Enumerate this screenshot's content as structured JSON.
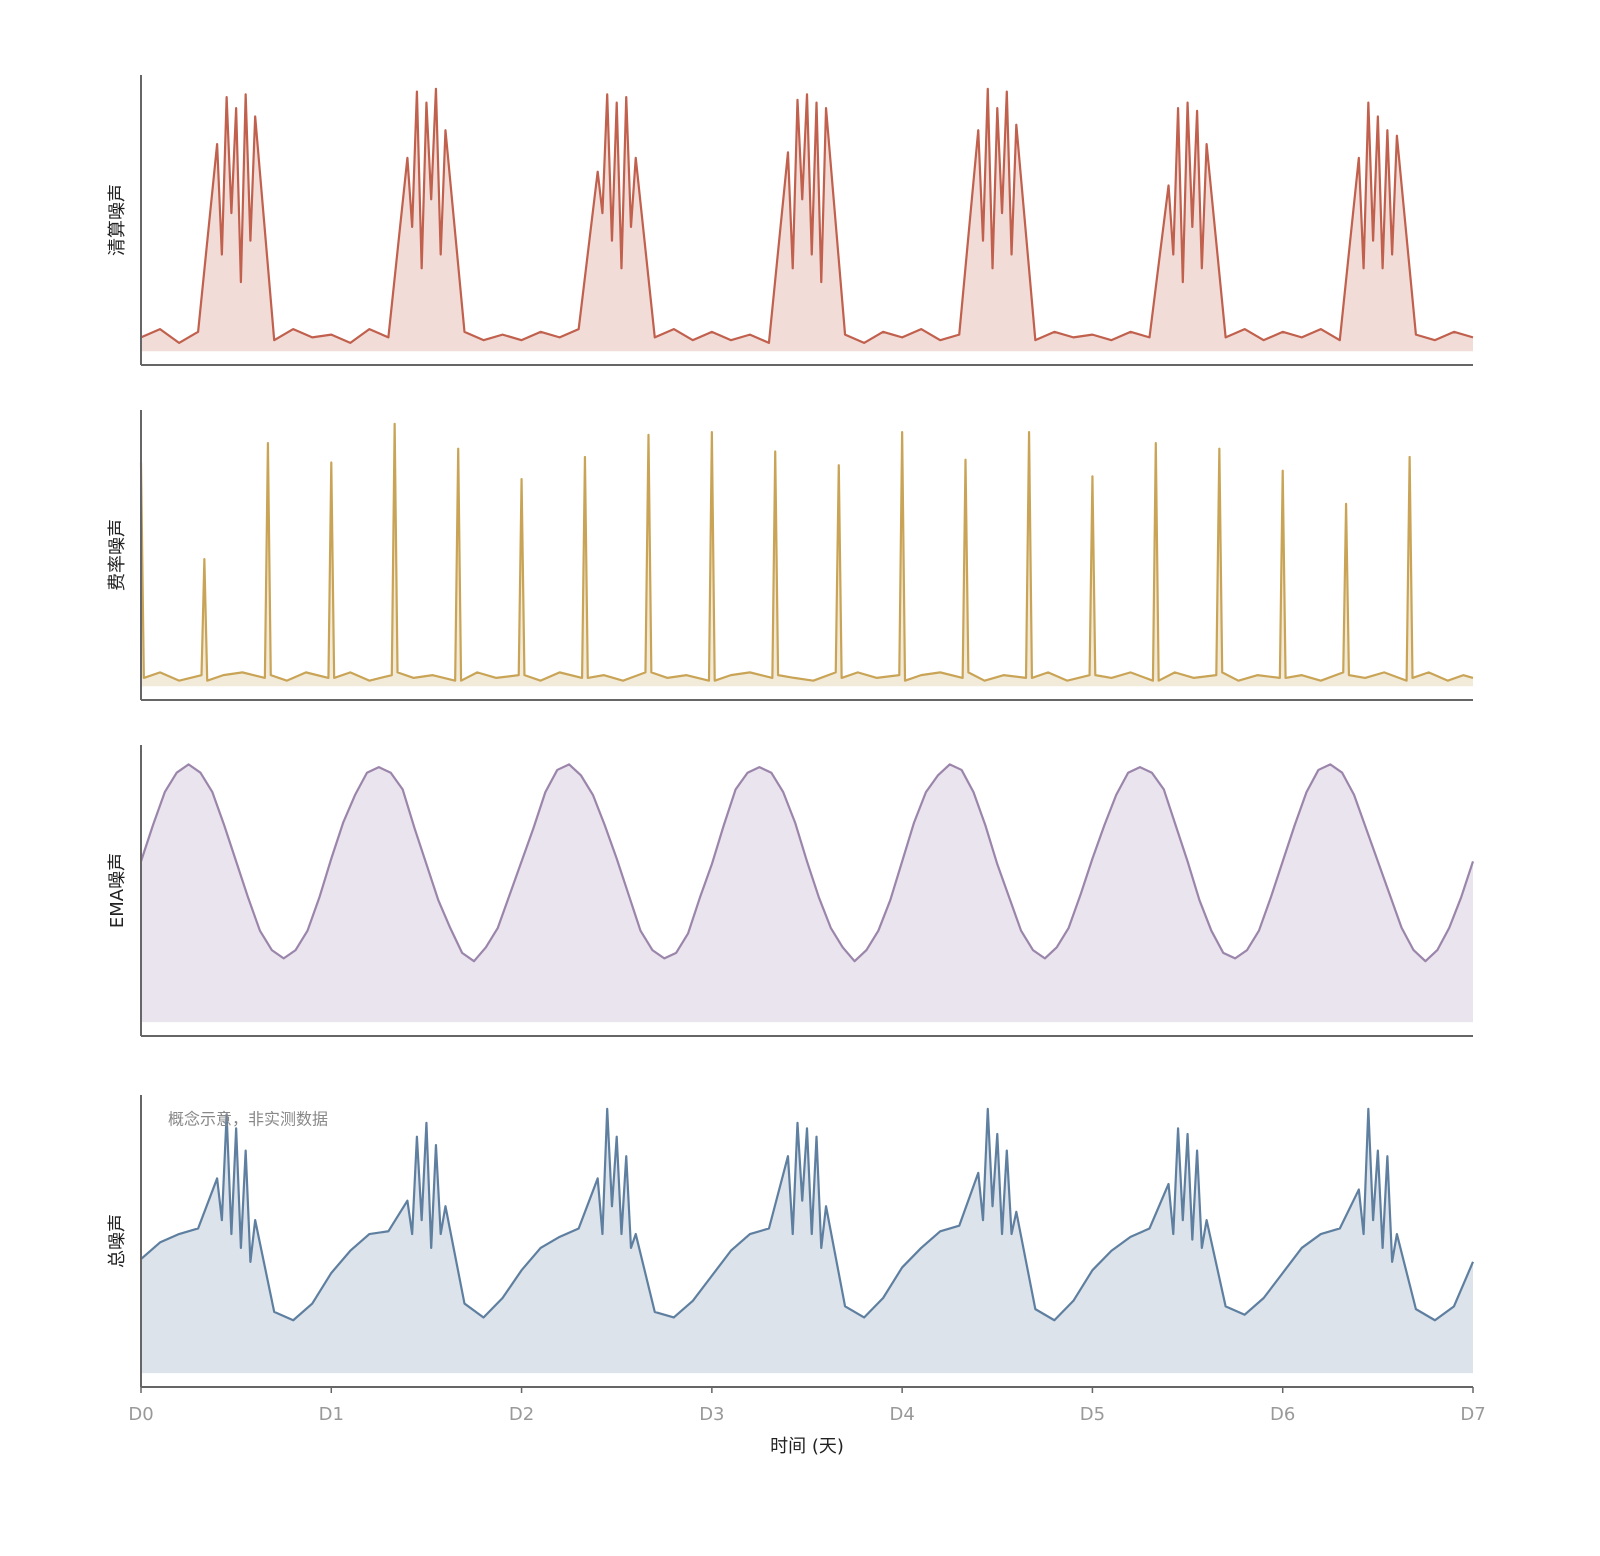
{
  "chart_data": [
    {
      "type": "area",
      "ylabel": "清算噪声",
      "color": "#c0604d",
      "xlim": [
        0,
        7
      ],
      "ylim": [
        -0.05,
        1.0
      ],
      "x": [
        0,
        0.1,
        0.2,
        0.3,
        0.4,
        0.425,
        0.45,
        0.475,
        0.5,
        0.525,
        0.55,
        0.575,
        0.6,
        0.7,
        0.8,
        0.9,
        1,
        1.1,
        1.2,
        1.3,
        1.4,
        1.425,
        1.45,
        1.475,
        1.5,
        1.525,
        1.55,
        1.575,
        1.6,
        1.7,
        1.8,
        1.9,
        2,
        2.1,
        2.2,
        2.3,
        2.4,
        2.425,
        2.45,
        2.475,
        2.5,
        2.525,
        2.55,
        2.575,
        2.6,
        2.7,
        2.8,
        2.9,
        3,
        3.1,
        3.2,
        3.3,
        3.4,
        3.425,
        3.45,
        3.475,
        3.5,
        3.525,
        3.55,
        3.575,
        3.6,
        3.7,
        3.8,
        3.9,
        4,
        4.1,
        4.2,
        4.3,
        4.4,
        4.425,
        4.45,
        4.475,
        4.5,
        4.525,
        4.55,
        4.575,
        4.6,
        4.7,
        4.8,
        4.9,
        5,
        5.1,
        5.2,
        5.3,
        5.4,
        5.425,
        5.45,
        5.475,
        5.5,
        5.525,
        5.55,
        5.575,
        5.6,
        5.7,
        5.8,
        5.9,
        6,
        6.1,
        6.2,
        6.3,
        6.4,
        6.425,
        6.45,
        6.475,
        6.5,
        6.525,
        6.55,
        6.575,
        6.6,
        6.7,
        6.8,
        6.9,
        7
      ],
      "values": [
        0.05,
        0.08,
        0.03,
        0.07,
        0.75,
        0.35,
        0.92,
        0.5,
        0.88,
        0.25,
        0.93,
        0.4,
        0.85,
        0.04,
        0.08,
        0.05,
        0.06,
        0.03,
        0.08,
        0.05,
        0.7,
        0.45,
        0.94,
        0.3,
        0.9,
        0.55,
        0.95,
        0.35,
        0.8,
        0.07,
        0.04,
        0.06,
        0.04,
        0.07,
        0.05,
        0.08,
        0.65,
        0.5,
        0.93,
        0.4,
        0.9,
        0.3,
        0.92,
        0.45,
        0.7,
        0.05,
        0.08,
        0.04,
        0.07,
        0.04,
        0.06,
        0.03,
        0.72,
        0.3,
        0.91,
        0.55,
        0.93,
        0.35,
        0.9,
        0.25,
        0.88,
        0.06,
        0.03,
        0.07,
        0.05,
        0.08,
        0.04,
        0.06,
        0.8,
        0.4,
        0.95,
        0.3,
        0.88,
        0.5,
        0.94,
        0.35,
        0.82,
        0.04,
        0.07,
        0.05,
        0.06,
        0.04,
        0.07,
        0.05,
        0.6,
        0.35,
        0.88,
        0.25,
        0.9,
        0.45,
        0.87,
        0.3,
        0.75,
        0.05,
        0.08,
        0.04,
        0.07,
        0.05,
        0.08,
        0.04,
        0.7,
        0.3,
        0.9,
        0.4,
        0.85,
        0.3,
        0.8,
        0.35,
        0.78,
        0.06,
        0.04,
        0.07,
        0.05
      ]
    },
    {
      "type": "area",
      "ylabel": "费率噪声",
      "color": "#c9a456",
      "xlim": [
        0,
        7
      ],
      "ylim": [
        -0.05,
        1.0
      ],
      "x": [
        0,
        0.015,
        0.1,
        0.2,
        0.318,
        0.333,
        0.348,
        0.433,
        0.533,
        0.651,
        0.667,
        0.682,
        0.767,
        0.867,
        0.985,
        1,
        1.015,
        1.1,
        1.2,
        1.318,
        1.333,
        1.348,
        1.433,
        1.533,
        1.651,
        1.667,
        1.682,
        1.767,
        1.867,
        1.985,
        2,
        2.015,
        2.1,
        2.2,
        2.318,
        2.333,
        2.348,
        2.433,
        2.533,
        2.651,
        2.667,
        2.682,
        2.767,
        2.867,
        2.985,
        3,
        3.015,
        3.1,
        3.2,
        3.318,
        3.333,
        3.348,
        3.433,
        3.533,
        3.651,
        3.667,
        3.682,
        3.767,
        3.867,
        3.985,
        4,
        4.015,
        4.1,
        4.2,
        4.318,
        4.333,
        4.348,
        4.433,
        4.533,
        4.651,
        4.667,
        4.682,
        4.767,
        4.867,
        4.985,
        5,
        5.015,
        5.1,
        5.2,
        5.318,
        5.333,
        5.348,
        5.433,
        5.533,
        5.651,
        5.667,
        5.682,
        5.767,
        5.867,
        5.985,
        6,
        6.015,
        6.1,
        6.2,
        6.318,
        6.333,
        6.348,
        6.433,
        6.533,
        6.651,
        6.667,
        6.682,
        6.767,
        6.867,
        6.95,
        7
      ],
      "values": [
        0.81,
        0.03,
        0.05,
        0.02,
        0.04,
        0.46,
        0.02,
        0.04,
        0.05,
        0.03,
        0.88,
        0.04,
        0.02,
        0.05,
        0.03,
        0.81,
        0.03,
        0.05,
        0.02,
        0.04,
        0.95,
        0.05,
        0.03,
        0.04,
        0.02,
        0.86,
        0.02,
        0.05,
        0.03,
        0.04,
        0.75,
        0.04,
        0.02,
        0.05,
        0.03,
        0.83,
        0.03,
        0.04,
        0.02,
        0.05,
        0.91,
        0.05,
        0.03,
        0.04,
        0.02,
        0.92,
        0.02,
        0.04,
        0.05,
        0.03,
        0.85,
        0.04,
        0.03,
        0.02,
        0.05,
        0.8,
        0.03,
        0.05,
        0.03,
        0.04,
        0.92,
        0.02,
        0.04,
        0.05,
        0.03,
        0.82,
        0.05,
        0.02,
        0.04,
        0.03,
        0.92,
        0.03,
        0.05,
        0.02,
        0.04,
        0.76,
        0.04,
        0.03,
        0.05,
        0.02,
        0.88,
        0.02,
        0.05,
        0.03,
        0.04,
        0.86,
        0.05,
        0.02,
        0.04,
        0.03,
        0.78,
        0.03,
        0.04,
        0.02,
        0.05,
        0.66,
        0.04,
        0.03,
        0.05,
        0.02,
        0.83,
        0.03,
        0.05,
        0.02,
        0.04,
        0.03
      ]
    },
    {
      "type": "area",
      "ylabel": "EMA噪声",
      "color": "#9b85ab",
      "xlim": [
        0,
        7
      ],
      "ylim": [
        -0.05,
        1.0
      ],
      "x": [
        0,
        0.0625,
        0.125,
        0.1875,
        0.25,
        0.3125,
        0.375,
        0.4375,
        0.5,
        0.5625,
        0.625,
        0.6875,
        0.75,
        0.8125,
        0.875,
        0.9375,
        1,
        1.0625,
        1.125,
        1.1875,
        1.25,
        1.3125,
        1.375,
        1.4375,
        1.5,
        1.5625,
        1.625,
        1.6875,
        1.75,
        1.8125,
        1.875,
        1.9375,
        2,
        2.0625,
        2.125,
        2.1875,
        2.25,
        2.3125,
        2.375,
        2.4375,
        2.5,
        2.5625,
        2.625,
        2.6875,
        2.75,
        2.8125,
        2.875,
        2.9375,
        3,
        3.0625,
        3.125,
        3.1875,
        3.25,
        3.3125,
        3.375,
        3.4375,
        3.5,
        3.5625,
        3.625,
        3.6875,
        3.75,
        3.8125,
        3.875,
        3.9375,
        4,
        4.0625,
        4.125,
        4.1875,
        4.25,
        4.3125,
        4.375,
        4.4375,
        4.5,
        4.5625,
        4.625,
        4.6875,
        4.75,
        4.8125,
        4.875,
        4.9375,
        5,
        5.0625,
        5.125,
        5.1875,
        5.25,
        5.3125,
        5.375,
        5.4375,
        5.5,
        5.5625,
        5.625,
        5.6875,
        5.75,
        5.8125,
        5.875,
        5.9375,
        6,
        6.0625,
        6.125,
        6.1875,
        6.25,
        6.3125,
        6.375,
        6.4375,
        6.5,
        6.5625,
        6.625,
        6.6875,
        6.75,
        6.8125,
        6.875,
        6.9375,
        7
      ],
      "values": [
        0.58,
        0.71,
        0.83,
        0.9,
        0.93,
        0.9,
        0.83,
        0.71,
        0.58,
        0.45,
        0.33,
        0.26,
        0.23,
        0.26,
        0.33,
        0.45,
        0.59,
        0.72,
        0.82,
        0.9,
        0.92,
        0.9,
        0.84,
        0.7,
        0.57,
        0.44,
        0.34,
        0.25,
        0.22,
        0.27,
        0.34,
        0.46,
        0.58,
        0.7,
        0.83,
        0.91,
        0.93,
        0.89,
        0.82,
        0.71,
        0.59,
        0.46,
        0.33,
        0.26,
        0.23,
        0.25,
        0.32,
        0.45,
        0.57,
        0.71,
        0.84,
        0.9,
        0.92,
        0.9,
        0.83,
        0.72,
        0.58,
        0.45,
        0.34,
        0.27,
        0.22,
        0.26,
        0.33,
        0.44,
        0.58,
        0.72,
        0.83,
        0.89,
        0.93,
        0.91,
        0.83,
        0.71,
        0.57,
        0.45,
        0.33,
        0.26,
        0.23,
        0.27,
        0.34,
        0.46,
        0.59,
        0.71,
        0.82,
        0.9,
        0.92,
        0.9,
        0.84,
        0.71,
        0.58,
        0.44,
        0.33,
        0.25,
        0.23,
        0.26,
        0.33,
        0.45,
        0.58,
        0.71,
        0.83,
        0.91,
        0.93,
        0.9,
        0.82,
        0.7,
        0.58,
        0.46,
        0.34,
        0.26,
        0.22,
        0.26,
        0.34,
        0.45,
        0.58
      ]
    },
    {
      "type": "area",
      "ylabel": "总噪声",
      "color": "#5f7fa0",
      "xlim": [
        0,
        7
      ],
      "ylim": [
        -0.05,
        1.0
      ],
      "xlabel": "时间 (天)",
      "annotation": "概念示意，非实测数据",
      "xticks": [
        {
          "value": 0,
          "label": "D0"
        },
        {
          "value": 1,
          "label": "D1"
        },
        {
          "value": 2,
          "label": "D2"
        },
        {
          "value": 3,
          "label": "D3"
        },
        {
          "value": 4,
          "label": "D4"
        },
        {
          "value": 5,
          "label": "D5"
        },
        {
          "value": 6,
          "label": "D6"
        },
        {
          "value": 7,
          "label": "D7"
        }
      ],
      "x": [
        0,
        0.1,
        0.2,
        0.3,
        0.4,
        0.425,
        0.45,
        0.475,
        0.5,
        0.525,
        0.55,
        0.575,
        0.6,
        0.7,
        0.8,
        0.9,
        1,
        1.1,
        1.2,
        1.3,
        1.4,
        1.425,
        1.45,
        1.475,
        1.5,
        1.525,
        1.55,
        1.575,
        1.6,
        1.7,
        1.8,
        1.9,
        2,
        2.1,
        2.2,
        2.3,
        2.4,
        2.425,
        2.45,
        2.475,
        2.5,
        2.525,
        2.55,
        2.575,
        2.6,
        2.7,
        2.8,
        2.9,
        3,
        3.1,
        3.2,
        3.3,
        3.4,
        3.425,
        3.45,
        3.475,
        3.5,
        3.525,
        3.55,
        3.575,
        3.6,
        3.7,
        3.8,
        3.9,
        4,
        4.1,
        4.2,
        4.3,
        4.4,
        4.425,
        4.45,
        4.475,
        4.5,
        4.525,
        4.55,
        4.575,
        4.6,
        4.7,
        4.8,
        4.9,
        5,
        5.1,
        5.2,
        5.3,
        5.4,
        5.425,
        5.45,
        5.475,
        5.5,
        5.525,
        5.55,
        5.575,
        5.6,
        5.7,
        5.8,
        5.9,
        6,
        6.1,
        6.2,
        6.3,
        6.4,
        6.425,
        6.45,
        6.475,
        6.5,
        6.525,
        6.55,
        6.575,
        6.6,
        6.7,
        6.8,
        6.9,
        7
      ],
      "values": [
        0.41,
        0.47,
        0.5,
        0.52,
        0.7,
        0.55,
        0.93,
        0.5,
        0.88,
        0.45,
        0.8,
        0.4,
        0.55,
        0.22,
        0.19,
        0.25,
        0.36,
        0.44,
        0.5,
        0.51,
        0.62,
        0.5,
        0.85,
        0.55,
        0.9,
        0.45,
        0.82,
        0.5,
        0.6,
        0.25,
        0.2,
        0.27,
        0.37,
        0.45,
        0.49,
        0.52,
        0.7,
        0.5,
        0.95,
        0.6,
        0.85,
        0.5,
        0.78,
        0.45,
        0.5,
        0.22,
        0.2,
        0.26,
        0.35,
        0.44,
        0.5,
        0.52,
        0.78,
        0.5,
        0.9,
        0.62,
        0.88,
        0.5,
        0.85,
        0.45,
        0.6,
        0.24,
        0.2,
        0.27,
        0.38,
        0.45,
        0.51,
        0.53,
        0.72,
        0.55,
        0.95,
        0.6,
        0.86,
        0.5,
        0.8,
        0.5,
        0.58,
        0.23,
        0.19,
        0.26,
        0.37,
        0.44,
        0.49,
        0.52,
        0.68,
        0.5,
        0.88,
        0.55,
        0.86,
        0.48,
        0.8,
        0.45,
        0.55,
        0.24,
        0.21,
        0.27,
        0.36,
        0.45,
        0.5,
        0.52,
        0.66,
        0.5,
        0.95,
        0.55,
        0.8,
        0.45,
        0.78,
        0.4,
        0.5,
        0.23,
        0.19,
        0.24,
        0.4
      ]
    }
  ]
}
